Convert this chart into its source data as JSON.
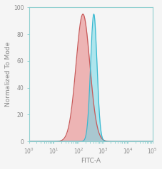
{
  "title": "",
  "xlabel": "FITC-A",
  "ylabel": "Normalized To Mode",
  "xlim_log": [
    0,
    5
  ],
  "ylim": [
    0,
    100
  ],
  "yticks": [
    0,
    20,
    40,
    60,
    80,
    100
  ],
  "red_peak_log": 2.18,
  "red_sigma_log": 0.28,
  "red_peak_height": 95,
  "blue_peak_log": 2.62,
  "blue_sigma_log": 0.13,
  "blue_peak_height": 95,
  "red_fill_color": "#E88080",
  "red_line_color": "#C85858",
  "blue_fill_color": "#72D8E8",
  "blue_line_color": "#38B8D0",
  "red_alpha": 0.55,
  "blue_alpha": 0.55,
  "background_color": "#f5f5f5",
  "spine_color": "#8ECFCF",
  "tick_color": "#888888",
  "label_color": "#888888",
  "n_points": 2000
}
